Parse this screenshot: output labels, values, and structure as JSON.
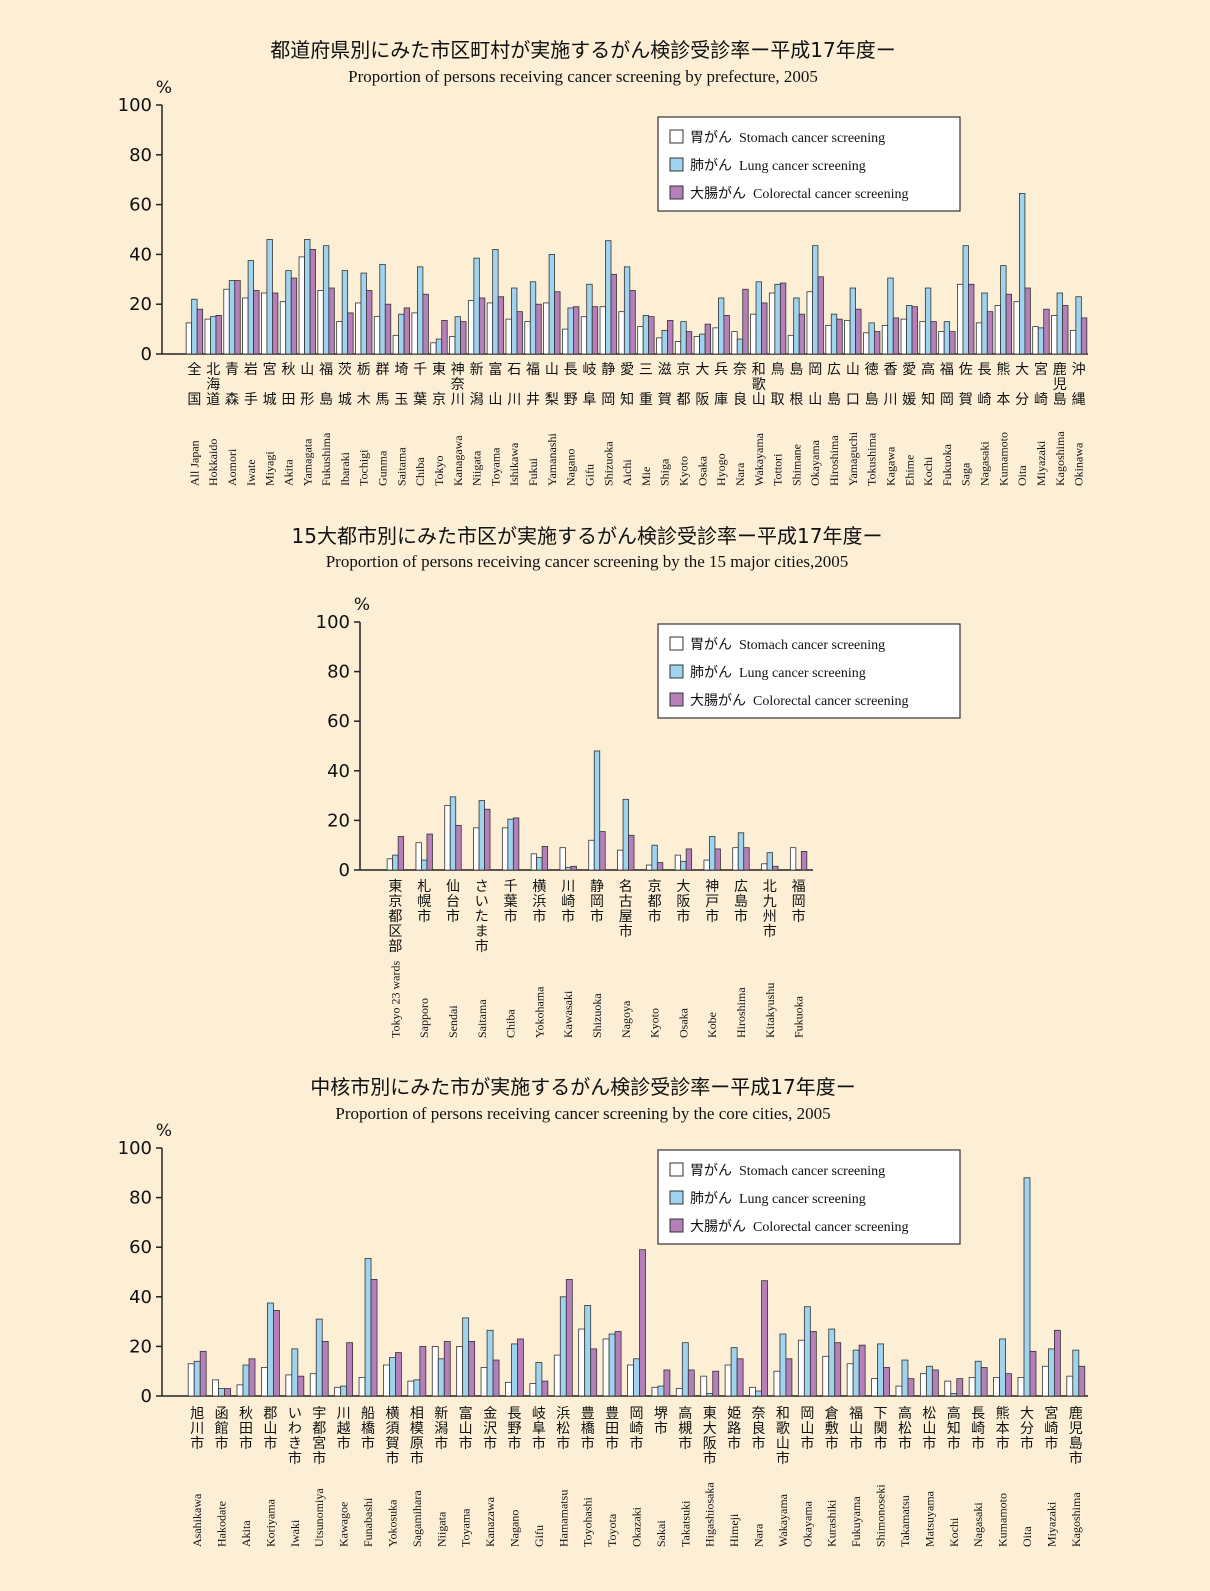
{
  "chart_data": [
    {
      "type": "bar",
      "title": "都道府県別にみた市区町村が実施するがん検診受診率ー平成17年度ー",
      "subtitle": "Proportion of persons receiving cancer screening by prefecture, 2005",
      "ylabel": "%",
      "categories_ja": [
        "全国",
        "北海道",
        "青森",
        "岩手",
        "宮城",
        "秋田",
        "山形",
        "福島",
        "茨城",
        "栃木",
        "群馬",
        "埼玉",
        "千葉",
        "東京",
        "神奈川",
        "新潟",
        "富山",
        "石川",
        "福井",
        "山梨",
        "長野",
        "岐阜",
        "静岡",
        "愛知",
        "三重",
        "滋賀",
        "京都",
        "大阪",
        "兵庫",
        "奈良",
        "和歌山",
        "鳥取",
        "島根",
        "岡山",
        "広島",
        "山口",
        "徳島",
        "香川",
        "愛媛",
        "高知",
        "福岡",
        "佐賀",
        "長崎",
        "熊本",
        "大分",
        "宮崎",
        "鹿児島",
        "沖縄"
      ],
      "categories": [
        "All Japan",
        "Hokkaido",
        "Aomori",
        "Iwate",
        "Miyagi",
        "Akita",
        "Yamagata",
        "Fukushima",
        "Ibaraki",
        "Tochigi",
        "Gunma",
        "Saitama",
        "Chiba",
        "Tokyo",
        "Kanagawa",
        "Niigata",
        "Toyama",
        "Ishikawa",
        "Fukui",
        "Yamanashi",
        "Nagano",
        "Gifu",
        "Shizuoka",
        "Aichi",
        "Mie",
        "Shiga",
        "Kyoto",
        "Osaka",
        "Hyogo",
        "Nara",
        "Wakayama",
        "Tottori",
        "Shimane",
        "Okayama",
        "Hiroshima",
        "Yamaguchi",
        "Tokushima",
        "Kagawa",
        "Ehime",
        "Kochi",
        "Fukuoka",
        "Saga",
        "Nagasaki",
        "Kumamoto",
        "Oita",
        "Miyazaki",
        "Kagoshima",
        "Okinawa"
      ],
      "series": [
        {
          "name": "胃がん",
          "name_en": "Stomach cancer screening",
          "color": "#ffffff",
          "values": [
            12.5,
            14,
            26,
            22.5,
            24.5,
            21,
            39,
            25.5,
            13,
            20.5,
            15,
            7.5,
            16.5,
            4.5,
            7,
            21.5,
            20.5,
            14,
            13,
            20.5,
            10,
            15,
            19,
            17,
            11,
            6.5,
            5,
            7,
            10.5,
            9,
            16,
            24.5,
            7.5,
            25,
            11.5,
            13.5,
            8.5,
            11.5,
            14,
            13,
            9,
            28,
            12.5,
            19.5,
            21,
            11,
            15.5,
            9.5
          ]
        },
        {
          "name": "肺がん",
          "name_en": "Lung cancer screening",
          "color": "#9fd3ee",
          "values": [
            22,
            15,
            29.5,
            37.5,
            46,
            33.5,
            46,
            43.5,
            33.5,
            32.5,
            36,
            16,
            35,
            6,
            15,
            38.5,
            42,
            26.5,
            29,
            40,
            18.5,
            28,
            45.5,
            35,
            15.5,
            9.5,
            13,
            8,
            22.5,
            6,
            29,
            28,
            22.5,
            43.5,
            16,
            26.5,
            12.5,
            30.5,
            19.5,
            26.5,
            13,
            43.5,
            24.5,
            35.5,
            64.5,
            10.5,
            24.5,
            23
          ]
        },
        {
          "name": "大腸がん",
          "name_en": "Colorectal cancer screening",
          "color": "#b57fba",
          "values": [
            18,
            15.5,
            29.5,
            25.5,
            24.5,
            30.5,
            42,
            26.5,
            16.5,
            25.5,
            20,
            18.5,
            24,
            13.5,
            13,
            22.5,
            23,
            17,
            20,
            25,
            19,
            19,
            32,
            25.5,
            15,
            13.5,
            9,
            12,
            15.5,
            26,
            20.5,
            28.5,
            16,
            31,
            14,
            18,
            9,
            14.5,
            19,
            13,
            9,
            28,
            17,
            24,
            26.5,
            18,
            19.5,
            14.5
          ]
        }
      ],
      "ylim": [
        0,
        100
      ],
      "yticks": [
        0,
        20,
        40,
        60,
        80,
        100
      ],
      "legend": "upper right"
    },
    {
      "type": "bar",
      "title": "15大都市別にみた市区が実施するがん検診受診率ー平成17年度ー",
      "subtitle": "Proportion of persons receiving cancer screening by the 15 major cities,2005",
      "ylabel": "%",
      "categories_ja": [
        "東京都区部",
        "札幌市",
        "仙台市",
        "さいたま市",
        "千葉市",
        "横浜市",
        "川崎市",
        "静岡市",
        "名古屋市",
        "京都市",
        "大阪市",
        "神戸市",
        "広島市",
        "北九州市",
        "福岡市"
      ],
      "categories": [
        "Tokyo 23 wards",
        "Sapporo",
        "Sendai",
        "Saitama",
        "Chiba",
        "Yokohama",
        "Kawasaki",
        "Shizuoka",
        "Nagoya",
        "Kyoto",
        "Osaka",
        "Kobe",
        "Hiroshima",
        "Kitakyushu",
        "Fukuoka"
      ],
      "series": [
        {
          "name": "胃がん",
          "name_en": "Stomach cancer screening",
          "color": "#ffffff",
          "values": [
            4.5,
            11,
            26,
            17,
            17,
            6.5,
            9,
            12,
            8,
            2,
            6,
            4,
            9,
            2.5,
            9
          ]
        },
        {
          "name": "肺がん",
          "name_en": "Lung cancer screening",
          "color": "#9fd3ee",
          "values": [
            6,
            4,
            29.5,
            28,
            20.5,
            5,
            1,
            48,
            28.5,
            10,
            3.5,
            13.5,
            15,
            7,
            null
          ]
        },
        {
          "name": "大腸がん",
          "name_en": "Colorectal cancer screening",
          "color": "#b57fba",
          "values": [
            13.5,
            14.5,
            18,
            24.5,
            21,
            9.5,
            1.5,
            15.5,
            14,
            3,
            8.5,
            8.5,
            9,
            1.5,
            7.5
          ]
        }
      ],
      "ylim": [
        0,
        100
      ],
      "yticks": [
        0,
        20,
        40,
        60,
        80,
        100
      ],
      "legend": "upper right"
    },
    {
      "type": "bar",
      "title": "中核市別にみた市が実施するがん検診受診率ー平成17年度ー",
      "subtitle": "Proportion of persons receiving cancer screening by the core cities, 2005",
      "ylabel": "%",
      "categories_ja": [
        "旭川市",
        "函館市",
        "秋田市",
        "郡山市",
        "いわき市",
        "宇都宮市",
        "川越市",
        "船橋市",
        "横須賀市",
        "相模原市",
        "新潟市",
        "富山市",
        "金沢市",
        "長野市",
        "岐阜市",
        "浜松市",
        "豊橋市",
        "豊田市",
        "岡崎市",
        "堺市",
        "高槻市",
        "東大阪市",
        "姫路市",
        "奈良市",
        "和歌山市",
        "岡山市",
        "倉敷市",
        "福山市",
        "下関市",
        "高松市",
        "松山市",
        "高知市",
        "長崎市",
        "熊本市",
        "大分市",
        "宮崎市",
        "鹿児島市"
      ],
      "categories": [
        "Asahikawa",
        "Hakodate",
        "Akita",
        "Koriyama",
        "Iwaki",
        "Utsunomiya",
        "Kawagoe",
        "Funabashi",
        "Yokosuka",
        "Sagamihara",
        "Niigata",
        "Toyama",
        "Kanazawa",
        "Nagano",
        "Gifu",
        "Hamamatsu",
        "Toyohashi",
        "Toyota",
        "Okazaki",
        "Sakai",
        "Takatsuki",
        "Higashiosaka",
        "Himeji",
        "Nara",
        "Wakayama",
        "Okayama",
        "Kurashiki",
        "Fukuyama",
        "Shimonoseki",
        "Takamatsu",
        "Matsuyama",
        "Kochi",
        "Nagasaki",
        "Kumamoto",
        "Oita",
        "Miyazaki",
        "Kagoshima"
      ],
      "series": [
        {
          "name": "胃がん",
          "name_en": "Stomach cancer screening",
          "color": "#ffffff",
          "values": [
            13,
            6.5,
            4.5,
            11.5,
            8.5,
            9,
            3.5,
            7.5,
            12.5,
            6,
            20,
            20,
            11.5,
            5.5,
            5,
            16.5,
            27,
            23,
            12.5,
            3.5,
            3,
            8,
            12.5,
            3.5,
            10,
            22.5,
            16,
            13,
            7,
            4,
            9,
            6,
            7.5,
            7.5,
            7.5,
            12,
            8
          ]
        },
        {
          "name": "肺がん",
          "name_en": "Lung cancer screening",
          "color": "#9fd3ee",
          "values": [
            14,
            3,
            12.5,
            37.5,
            19,
            31,
            4,
            55.5,
            15.5,
            6.5,
            15,
            31.5,
            26.5,
            21,
            13.5,
            40,
            36.5,
            25,
            15,
            4,
            21.5,
            1,
            19.5,
            2,
            25,
            36,
            27,
            18.5,
            21,
            14.5,
            12,
            1,
            14,
            23,
            88,
            19,
            18.5
          ]
        },
        {
          "name": "大腸がん",
          "name_en": "Colorectal cancer screening",
          "color": "#b57fba",
          "values": [
            18,
            3,
            15,
            34.5,
            8,
            22,
            21.5,
            47,
            17.5,
            20,
            22,
            22,
            14.5,
            23,
            6,
            47,
            19,
            26,
            59,
            10.5,
            10.5,
            10,
            15,
            46.5,
            15,
            26,
            21.5,
            20.5,
            11.5,
            7,
            10.5,
            7,
            11.5,
            9,
            18,
            26.5,
            12
          ]
        }
      ],
      "ylim": [
        0,
        100
      ],
      "yticks": [
        0,
        20,
        40,
        60,
        80,
        100
      ],
      "legend": "upper right"
    }
  ]
}
